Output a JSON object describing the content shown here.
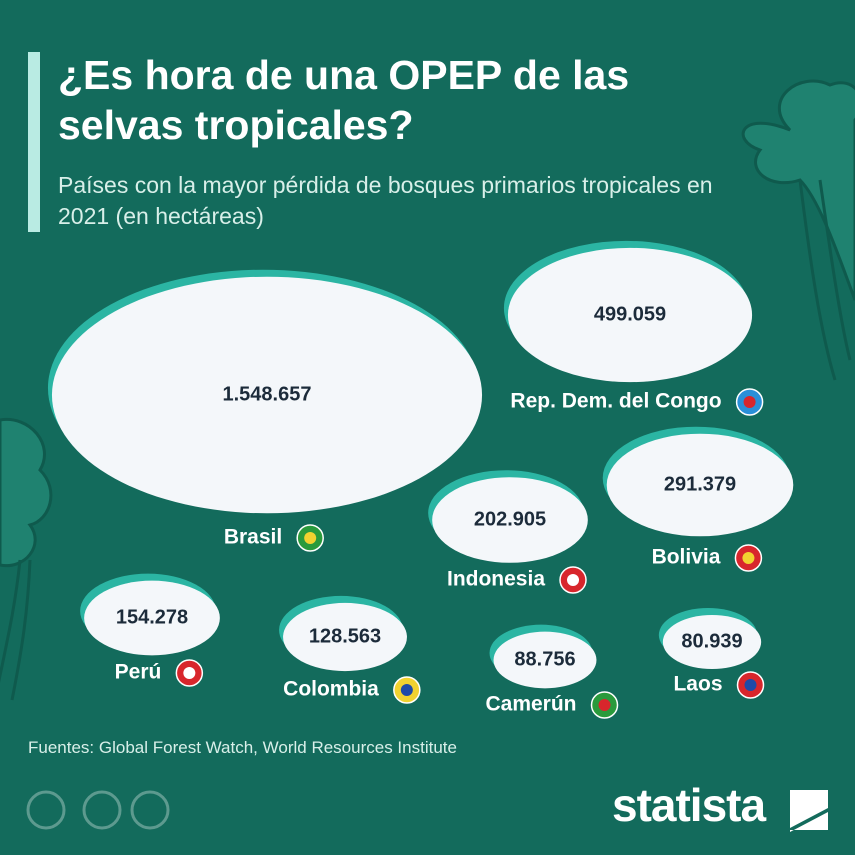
{
  "chart_data": {
    "type": "bubble",
    "title": "¿Es hora de una OPEP de las selvas tropicales?",
    "subtitle": "Países con la mayor pérdida de bosques primarios tropicales en 2021 (en hectáreas)",
    "categories": [
      "Brasil",
      "Rep. Dem. del Congo",
      "Bolivia",
      "Indonesia",
      "Perú",
      "Colombia",
      "Camerún",
      "Laos"
    ],
    "values": [
      1548657,
      499059,
      291379,
      202905,
      154278,
      128563,
      88756,
      80939
    ],
    "value_labels": [
      "1.548.657",
      "499.059",
      "291.379",
      "202.905",
      "154.278",
      "128.563",
      "88.756",
      "80.939"
    ],
    "color": "#f4f7fa",
    "source": "Fuentes: Global Forest Watch, World Resources Institute",
    "brand": "statista"
  }
}
